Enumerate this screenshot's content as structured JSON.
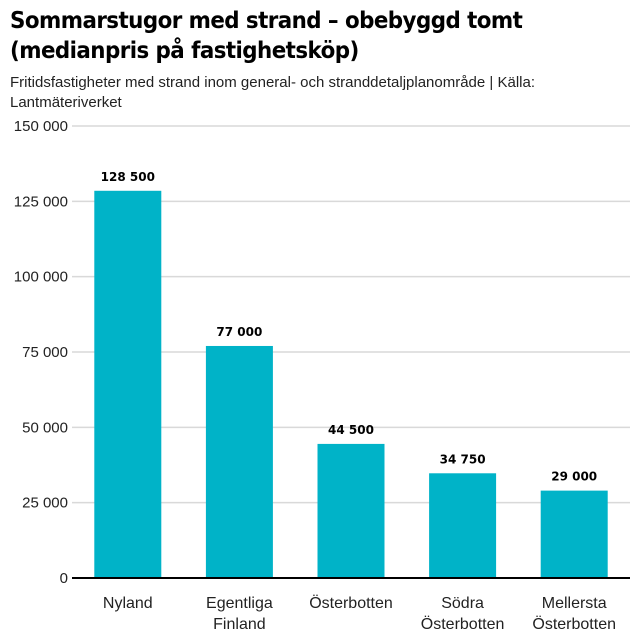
{
  "header": {
    "title_line1": "Sommarstugor med strand – obebyggd tomt",
    "title_line2": "(medianpris på fastighetsköp)",
    "subtitle_line1": "Fritidsfastigheter med strand inom general- och stranddetaljplanområde | Källa:",
    "subtitle_line2": "Lantmäteriverket"
  },
  "chart_data": {
    "type": "bar",
    "title": "Sommarstugor med strand – obebyggd tomt (medianpris på fastighetsköp)",
    "subtitle": "Fritidsfastigheter med strand inom general- och stranddetaljplanområde | Källa: Lantmäteriverket",
    "xlabel": "",
    "ylabel": "",
    "categories": [
      [
        "Nyland"
      ],
      [
        "Egentliga",
        "Finland"
      ],
      [
        "Österbotten"
      ],
      [
        "Södra",
        "Österbotten"
      ],
      [
        "Mellersta",
        "Österbotten"
      ]
    ],
    "values": [
      128500,
      77000,
      44500,
      34750,
      29000
    ],
    "value_labels": [
      "128 500",
      "77 000",
      "44 500",
      "34 750",
      "29 000"
    ],
    "ylim": [
      0,
      150000
    ],
    "yticks": [
      0,
      25000,
      50000,
      75000,
      100000,
      125000,
      150000
    ],
    "ytick_labels": [
      "0",
      "25 000",
      "50 000",
      "75 000",
      "100 000",
      "125 000",
      "150 000"
    ],
    "grid": true,
    "bar_color": "#00b3c8"
  }
}
